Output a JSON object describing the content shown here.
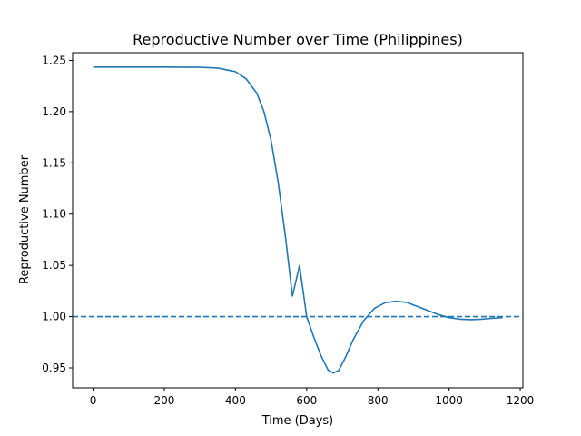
{
  "chart_data": {
    "type": "line",
    "title": "Reproductive Number over Time (Philippines)",
    "xlabel": "Time (Days)",
    "ylabel": "Reproductive Number",
    "xlim": [
      -57.5,
      1207.5
    ],
    "ylim": [
      0.9305,
      1.2575
    ],
    "xticks": [
      0,
      200,
      400,
      600,
      800,
      1000,
      1200
    ],
    "xtick_labels": [
      "0",
      "200",
      "400",
      "600",
      "800",
      "1000",
      "1200"
    ],
    "yticks": [
      0.95,
      1.0,
      1.05,
      1.1,
      1.15,
      1.2,
      1.25
    ],
    "ytick_labels": [
      "0.95",
      "1.00",
      "1.05",
      "1.10",
      "1.15",
      "1.20",
      "1.25"
    ],
    "grid": false,
    "colors": {
      "line": "#1f77b4",
      "reference": "#1f77b4"
    },
    "series": [
      {
        "style": "solid",
        "x": [
          0,
          100,
          200,
          300,
          350,
          400,
          430,
          460,
          480,
          500,
          520,
          540,
          560,
          580,
          600,
          620,
          640,
          660,
          675,
          690,
          710,
          730,
          760,
          790,
          820,
          850,
          880,
          910,
          940,
          970,
          1000,
          1030,
          1060,
          1090,
          1120,
          1150
        ],
        "y": [
          1.2435,
          1.2435,
          1.2435,
          1.2433,
          1.2425,
          1.239,
          1.232,
          1.218,
          1.2,
          1.172,
          1.131,
          1.079,
          1.02,
          1.05,
          1.0,
          0.98,
          0.962,
          0.948,
          0.945,
          0.9475,
          0.961,
          0.977,
          0.996,
          1.008,
          1.0135,
          1.015,
          1.014,
          1.01,
          1.006,
          1.002,
          0.999,
          0.9975,
          0.997,
          0.9975,
          0.9983,
          0.999
        ]
      },
      {
        "style": "dashed",
        "x": [
          -57.5,
          1207.5
        ],
        "y": [
          1.0,
          1.0
        ]
      }
    ]
  }
}
